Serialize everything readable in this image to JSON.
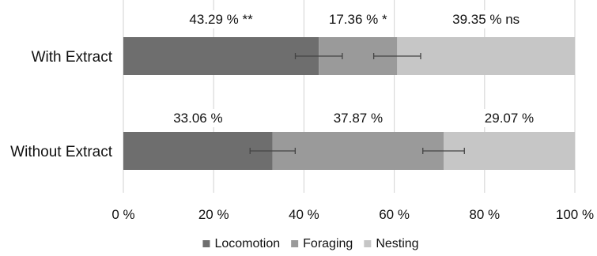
{
  "chart_data": {
    "type": "bar",
    "stacked": true,
    "orientation": "horizontal",
    "categories": [
      "With Extract",
      "Without Extract"
    ],
    "series": [
      {
        "name": "Locomotion",
        "values": [
          43.29,
          33.06
        ],
        "errors": [
          5.2,
          5.0
        ],
        "color": "#6e6e6e"
      },
      {
        "name": "Foraging",
        "values": [
          17.36,
          37.87
        ],
        "errors": [
          5.2,
          4.6
        ],
        "color": "#9a9a9a"
      },
      {
        "name": "Nesting",
        "values": [
          39.35,
          29.07
        ],
        "errors": [
          null,
          null
        ],
        "color": "#c6c6c6"
      }
    ],
    "data_labels": [
      [
        "43.29 % **",
        "17.36 % *",
        "39.35 % ns"
      ],
      [
        "33.06 %",
        "37.87 %",
        "29.07 %"
      ]
    ],
    "x_ticks": [
      "0 %",
      "20 %",
      "40 %",
      "60 %",
      "80 %",
      "100 %"
    ],
    "xlim": [
      0,
      100
    ],
    "grid": true,
    "legend_position": "bottom"
  }
}
